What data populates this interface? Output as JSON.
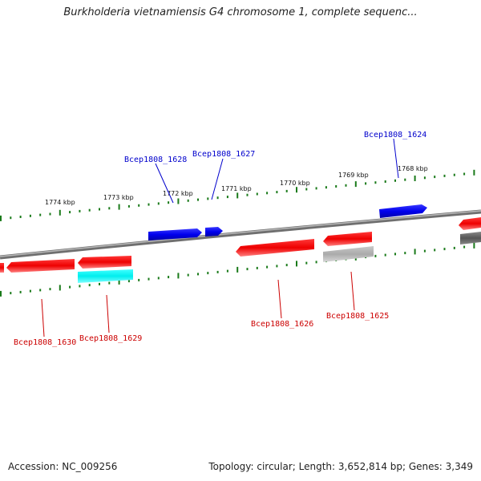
{
  "title": "Burkholderia vietnamiensis G4 chromosome 1, complete sequenc...",
  "footer": {
    "accession": "Accession: NC_009256",
    "summary": "Topology: circular; Length: 3,652,814 bp; Genes: 3,349"
  },
  "colors": {
    "forward_gene": "#0000ee",
    "reverse_gene": "#ee0000",
    "cyan_feature": "#00eeee",
    "grey_feature": "#aaaaaa",
    "dark_grey_feature": "#555555",
    "backbone": "#777777",
    "tick": "#1a7a1a",
    "label_forward": "#0000cc",
    "label_reverse": "#cc0000"
  },
  "scale": {
    "unit": "kbp",
    "ticks": [
      {
        "label": "1774 kbp"
      },
      {
        "label": "1773 kbp"
      },
      {
        "label": "1772 kbp"
      },
      {
        "label": "1771 kbp"
      },
      {
        "label": "1770 kbp"
      },
      {
        "label": "1769 kbp"
      },
      {
        "label": "1768 kbp"
      }
    ]
  },
  "genes": {
    "forward": [
      {
        "label": "Bcep1808_1628"
      },
      {
        "label": "Bcep1808_1627"
      },
      {
        "label": "Bcep1808_1624"
      }
    ],
    "reverse": [
      {
        "label": "Bcep1808_1630"
      },
      {
        "label": "Bcep1808_1629"
      },
      {
        "label": "Bcep1808_1626"
      },
      {
        "label": "Bcep1808_1625"
      }
    ]
  }
}
